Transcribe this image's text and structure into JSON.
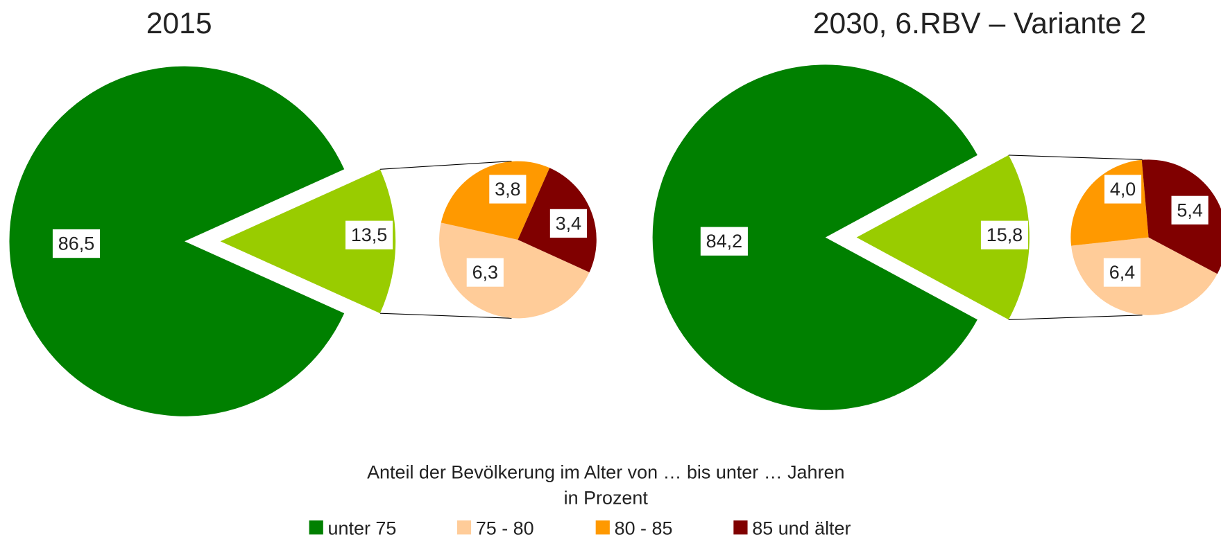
{
  "chart_data": [
    {
      "type": "pie-of-pie",
      "title": "2015",
      "values": [
        86.5,
        13.5
      ],
      "value_labels": [
        "86,5",
        "13,5"
      ],
      "colors": [
        "#008000",
        "#99cc00"
      ],
      "sub_values": [
        6.3,
        3.8,
        3.4
      ],
      "sub_value_labels": [
        "6,3",
        "3,8",
        "3,4"
      ],
      "sub_colors": [
        "#ffcc99",
        "#ff9900",
        "#800000"
      ]
    },
    {
      "type": "pie-of-pie",
      "title": "2030, 6.RBV – Variante 2",
      "values": [
        84.2,
        15.8
      ],
      "value_labels": [
        "84,2",
        "15,8"
      ],
      "colors": [
        "#008000",
        "#99cc00"
      ],
      "sub_values": [
        6.4,
        4.0,
        5.4
      ],
      "sub_value_labels": [
        "6,4",
        "4,0",
        "5,4"
      ],
      "sub_colors": [
        "#ffcc99",
        "#ff9900",
        "#800000"
      ]
    }
  ],
  "legend": {
    "title": "Anteil der Bevölkerung im Alter von … bis unter … Jahren",
    "subtitle": "in Prozent",
    "items": [
      "unter 75",
      "75 - 80",
      "80 - 85",
      "85 und älter"
    ],
    "colors": [
      "#008000",
      "#ffcc99",
      "#ff9900",
      "#800000"
    ]
  }
}
